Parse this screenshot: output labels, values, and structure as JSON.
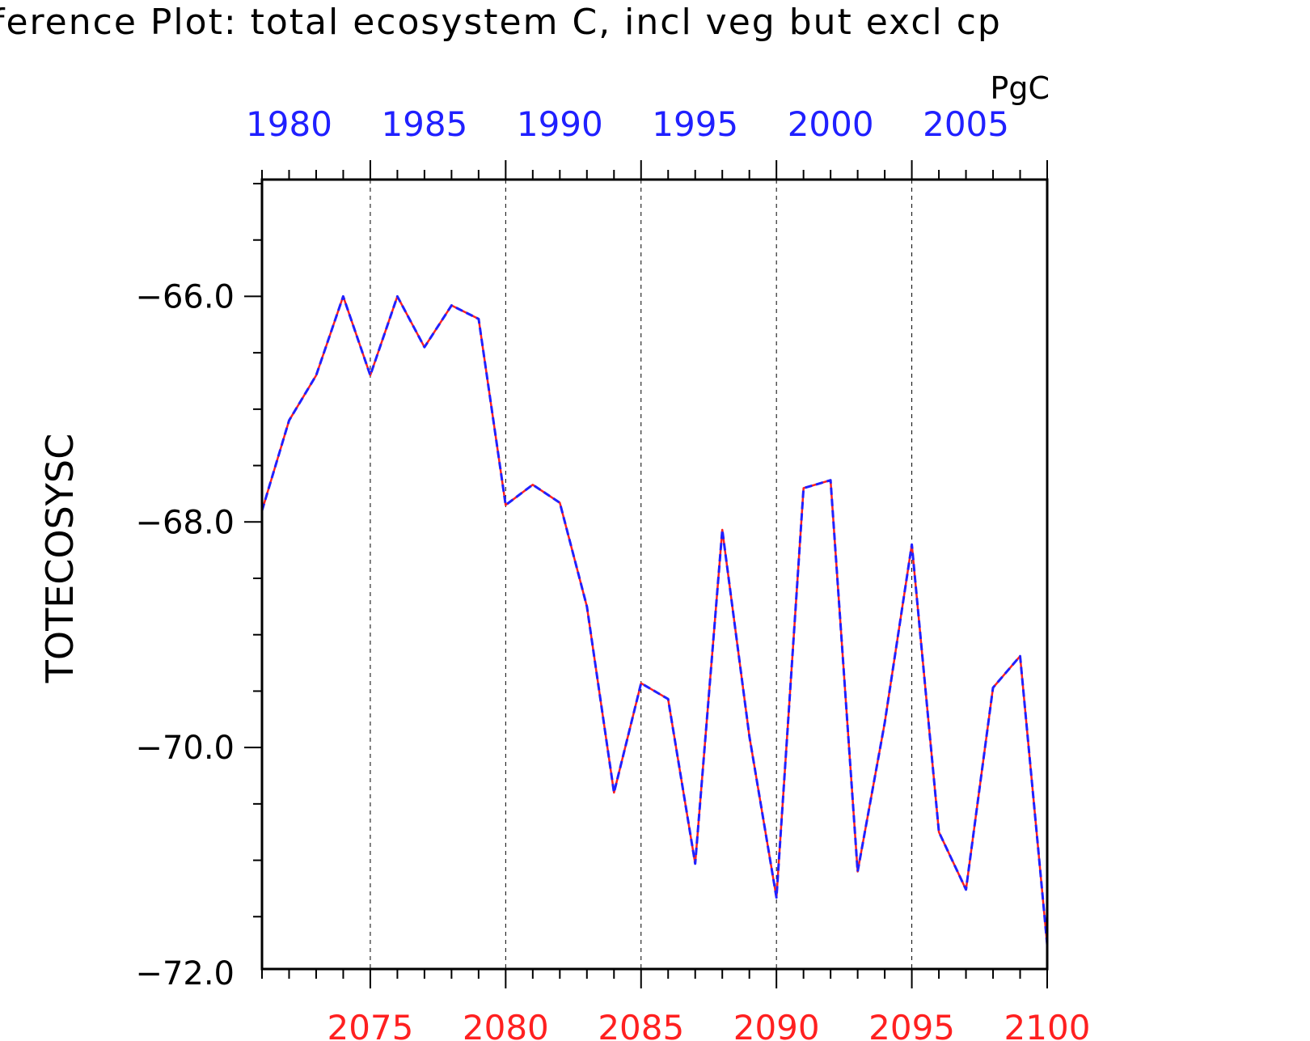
{
  "chart_data": {
    "type": "line",
    "title": "ference Plot: total ecosystem C, incl veg but excl cp",
    "units": "PgC",
    "ylabel": "TOTECOSYSC",
    "ylim": [
      -72.0,
      -65.0
    ],
    "yticks": [
      -66.0,
      -68.0,
      -70.0,
      -72.0
    ],
    "ytick_labels": [
      "−66.0",
      "−68.0",
      "−70.0",
      "−72.0"
    ],
    "x_bottom": {
      "range": [
        2071,
        2100
      ],
      "ticks": [
        2075,
        2080,
        2085,
        2090,
        2095,
        2100
      ],
      "tick_labels": [
        "2075",
        "2080",
        "2085",
        "2090",
        "2095",
        "2100"
      ],
      "color": "#ff2020"
    },
    "x_top": {
      "range": [
        1979,
        2008
      ],
      "ticks": [
        1980,
        1985,
        1990,
        1995,
        2000,
        2005
      ],
      "tick_labels": [
        "1980",
        "1985",
        "1990",
        "1995",
        "2000",
        "2005"
      ],
      "color": "#2020ff"
    },
    "grid": "vertical dashed at major x ticks",
    "x": [
      2071,
      2072,
      2073,
      2074,
      2075,
      2076,
      2077,
      2078,
      2079,
      2080,
      2081,
      2082,
      2083,
      2084,
      2085,
      2086,
      2087,
      2088,
      2089,
      2090,
      2091,
      2092,
      2093,
      2094,
      2095,
      2096,
      2097,
      2098,
      2099,
      2100
    ],
    "series": [
      {
        "color": "#ff2020",
        "style": "solid",
        "values": [
          -67.9,
          -67.1,
          -66.7,
          -66.0,
          -66.7,
          -66.0,
          -66.45,
          -66.08,
          -66.2,
          -67.85,
          -67.67,
          -67.83,
          -68.75,
          -70.4,
          -69.43,
          -69.57,
          -71.03,
          -68.07,
          -69.9,
          -71.33,
          -67.7,
          -67.63,
          -71.1,
          -69.78,
          -68.2,
          -70.75,
          -71.26,
          -69.47,
          -69.19,
          -71.75
        ]
      },
      {
        "color": "#2020ff",
        "style": "dashed",
        "values": [
          -67.9,
          -67.1,
          -66.7,
          -66.0,
          -66.7,
          -66.0,
          -66.45,
          -66.08,
          -66.2,
          -67.85,
          -67.67,
          -67.83,
          -68.75,
          -70.4,
          -69.43,
          -69.57,
          -71.03,
          -68.07,
          -69.9,
          -71.33,
          -67.7,
          -67.63,
          -71.1,
          -69.78,
          -68.2,
          -70.75,
          -71.26,
          -69.47,
          -69.19,
          -71.75
        ]
      }
    ]
  }
}
